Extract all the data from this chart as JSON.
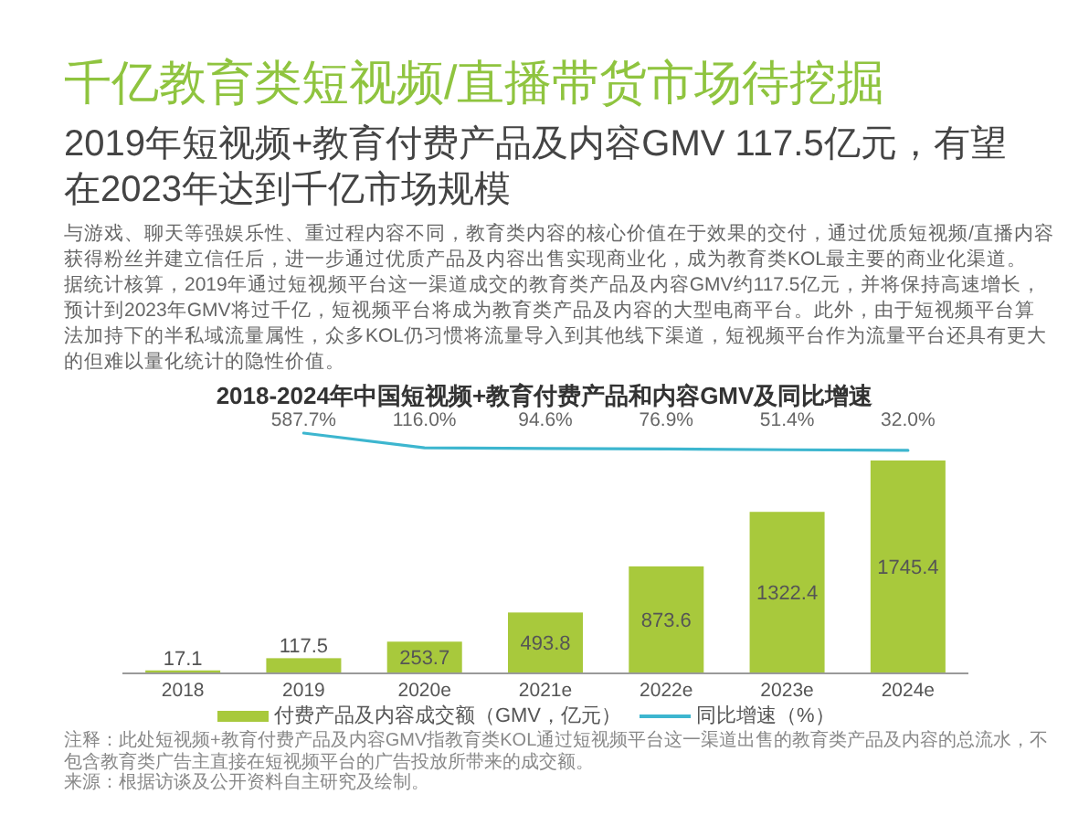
{
  "chart_data": [
    {
      "type": "other",
      "title": "千亿教育类短视频/直播带货市场待挖掘",
      "subtitle": "2019年短视频+教育付费产品及内容GMV 117.5亿元，有望在2023年达到千亿市场规模",
      "annotations": [
        "与游戏、聊天等强娱乐性、重过程内容不同，教育类内容的核心价值在于效果的交付，通过优质短视频/直播内容获得粉丝并建立信任后，进一步通过优质产品及内容出售实现商业化，成为教育类KOL最主要的商业化渠道。",
        "据统计核算，2019年通过短视频平台这一渠道成交的教育类产品及内容GMV约117.5亿元，并将保持高速增长，预计到2023年GMV将过千亿，短视频平台将成为教育类产品及内容的大型电商平台。此外，由于短视频平台算法加持下的半私域流量属性，众多KOL仍习惯将流量导入到其他线下渠道，短视频平台作为流量平台还具有更大的但难以量化统计的隐性价值。"
      ]
    },
    {
      "type": "line",
      "title": "2018-2024年中国短视频+教育付费产品和内容GMV及同比增速",
      "categories": [
        null,
        null,
        null,
        null,
        null,
        null,
        null
      ],
      "tick_labels": false,
      "series": [
        {
          "name": "同比增速（%）",
          "type": "line",
          "color": "#3db6cf",
          "values": [
            null,
            587.7,
            116.0,
            94.6,
            76.9,
            51.4,
            32.0
          ],
          "value_labels": [
            null,
            "587.7%",
            "116.0%",
            "94.6%",
            "76.9%",
            "51.4%",
            "32.0%"
          ]
        }
      ],
      "legend": "bottom"
    },
    {
      "type": "bar",
      "categories": [
        "2018",
        "2019",
        "2020e",
        "2021e",
        "2022e",
        "2023e",
        "2024e"
      ],
      "series": [
        {
          "name": "付费产品及内容成交额（GMV，亿元）",
          "type": "bar",
          "color": "#a8c93c",
          "values": [
            17.1,
            117.5,
            253.7,
            493.8,
            873.6,
            1322.4,
            1745.4
          ],
          "value_labels": [
            "17.1",
            "117.5",
            "253.7",
            "493.8",
            "873.6",
            "1322.4",
            "1745.4"
          ]
        }
      ],
      "legend": "bottom",
      "annotations": [
        "注释：此处短视频+教育付费产品及内容GMV指教育类KOL通过短视频平台这一渠道出售的教育类产品及内容的总流水，不包含教育类广告主直接在短视频平台的广告投放所带来的成交额。",
        "来源：根据访谈及公开资料自主研究及绘制。"
      ]
    }
  ]
}
